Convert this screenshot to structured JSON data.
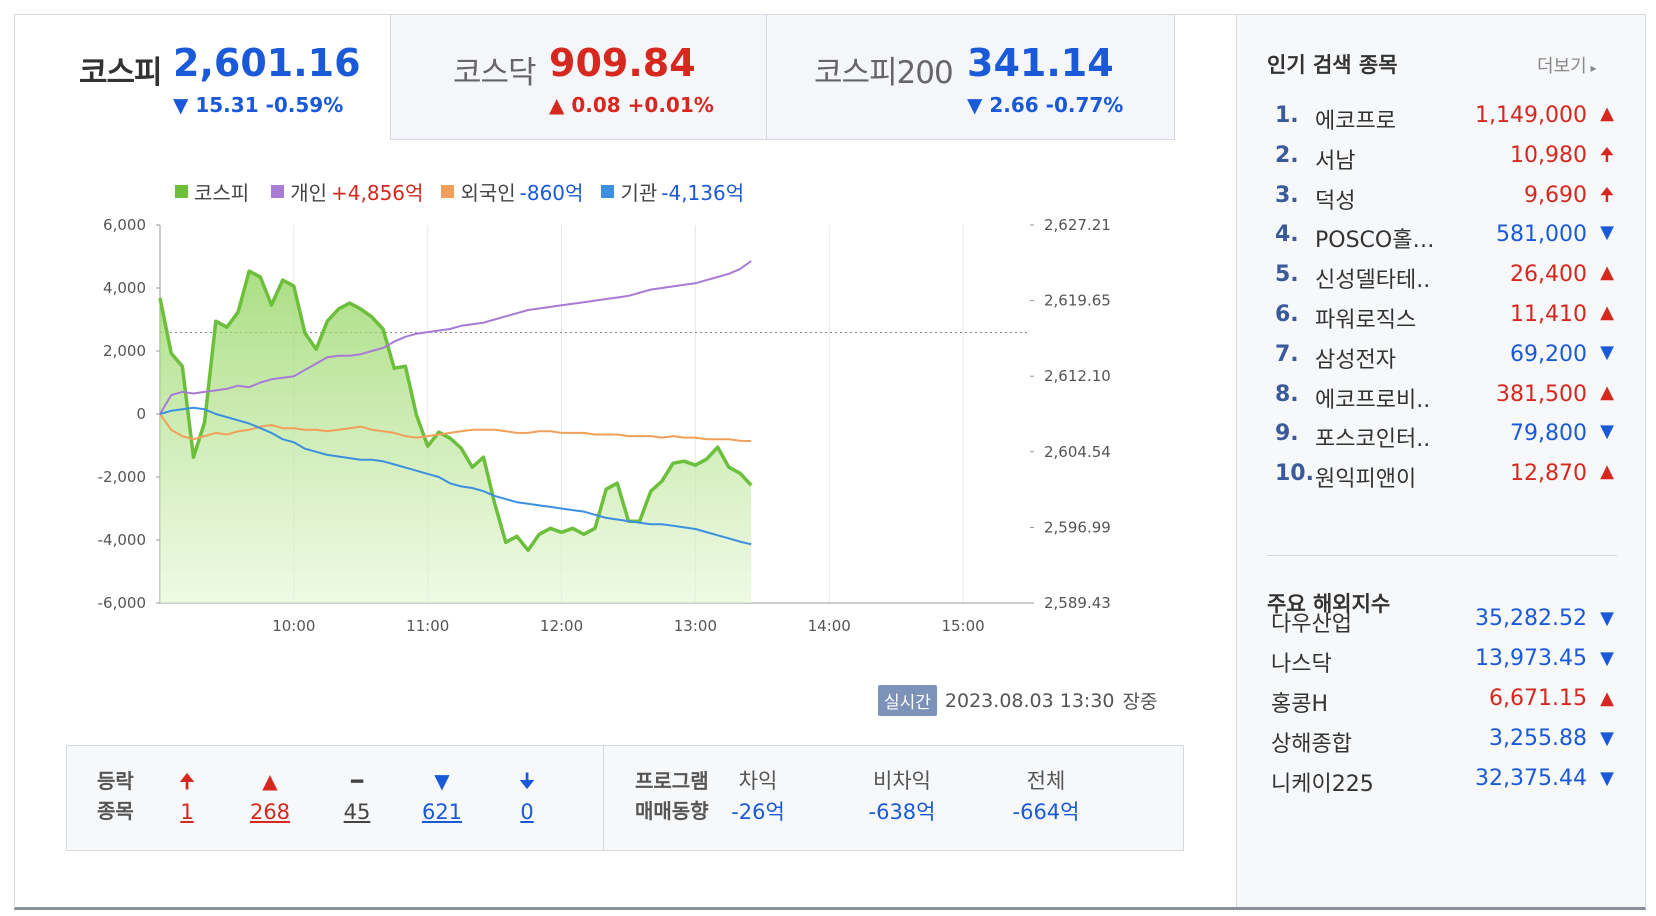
{
  "tabs": [
    {
      "name": "코스피",
      "value": "2,601.16",
      "change": "▼ 15.31 -0.59%",
      "dir": "down",
      "active": true
    },
    {
      "name": "코스닥",
      "value": "909.84",
      "change": "▲ 0.08 +0.01%",
      "dir": "up",
      "active": false
    },
    {
      "name": "코스피200",
      "value": "341.14",
      "change": "▼ 2.66 -0.77%",
      "dir": "down",
      "active": false
    }
  ],
  "legend": [
    {
      "label": "코스피",
      "value": "",
      "color": "#6bbf3a"
    },
    {
      "label": "개인",
      "value": "+4,856억",
      "color": "#a77bd6",
      "value_color": "#d6281f"
    },
    {
      "label": "외국인",
      "value": "-860억",
      "color": "#f0a05a",
      "value_color": "#1a5ad8"
    },
    {
      "label": "기관",
      "value": "-4,136억",
      "color": "#3d8fe0",
      "value_color": "#1a5ad8"
    }
  ],
  "chart_data": {
    "type": "line",
    "x_ticks": [
      "10:00",
      "11:00",
      "12:00",
      "13:00",
      "14:00",
      "15:00"
    ],
    "x_range": [
      "09:00",
      "15:30"
    ],
    "y_left_ticks": [
      "6,000",
      "4,000",
      "2,000",
      "0",
      "-2,000",
      "-4,000",
      "-6,000"
    ],
    "y_left_range": [
      -6000,
      6000
    ],
    "y_right_ticks": [
      "2,627.21",
      "2,619.65",
      "2,612.10",
      "2,604.54",
      "2,596.99",
      "2,589.43"
    ],
    "y_right_range": [
      2589.43,
      2627.21
    ],
    "reference_line": 2616.47,
    "series": [
      {
        "name": "코스피",
        "axis": "right",
        "color": "#6bbf3a",
        "fill": true,
        "points": [
          [
            "09:00",
            2619.9
          ],
          [
            "09:05",
            2614.4
          ],
          [
            "09:10",
            2613.1
          ],
          [
            "09:15",
            2604.0
          ],
          [
            "09:20",
            2607.5
          ],
          [
            "09:25",
            2617.6
          ],
          [
            "09:30",
            2617.0
          ],
          [
            "09:35",
            2618.5
          ],
          [
            "09:40",
            2622.6
          ],
          [
            "09:45",
            2622.0
          ],
          [
            "09:50",
            2619.2
          ],
          [
            "09:55",
            2621.7
          ],
          [
            "10:00",
            2621.1
          ],
          [
            "10:05",
            2616.4
          ],
          [
            "10:10",
            2614.8
          ],
          [
            "10:15",
            2617.6
          ],
          [
            "10:20",
            2618.8
          ],
          [
            "10:25",
            2619.4
          ],
          [
            "10:30",
            2618.8
          ],
          [
            "10:35",
            2618.0
          ],
          [
            "10:40",
            2616.8
          ],
          [
            "10:45",
            2612.9
          ],
          [
            "10:50",
            2613.1
          ],
          [
            "10:55",
            2608.2
          ],
          [
            "11:00",
            2605.1
          ],
          [
            "11:05",
            2606.5
          ],
          [
            "11:10",
            2605.9
          ],
          [
            "11:15",
            2604.9
          ],
          [
            "11:20",
            2603.0
          ],
          [
            "11:25",
            2604.0
          ],
          [
            "11:30",
            2599.4
          ],
          [
            "11:35",
            2595.5
          ],
          [
            "11:40",
            2596.1
          ],
          [
            "11:45",
            2594.7
          ],
          [
            "11:50",
            2596.3
          ],
          [
            "11:55",
            2596.9
          ],
          [
            "12:00",
            2596.5
          ],
          [
            "12:05",
            2596.9
          ],
          [
            "12:10",
            2596.3
          ],
          [
            "12:15",
            2596.9
          ],
          [
            "12:20",
            2600.8
          ],
          [
            "12:25",
            2601.4
          ],
          [
            "12:30",
            2597.6
          ],
          [
            "12:35",
            2597.6
          ],
          [
            "12:40",
            2600.6
          ],
          [
            "12:45",
            2601.6
          ],
          [
            "12:50",
            2603.4
          ],
          [
            "12:55",
            2603.6
          ],
          [
            "13:00",
            2603.2
          ],
          [
            "13:05",
            2603.8
          ],
          [
            "13:10",
            2605.0
          ],
          [
            "13:15",
            2603.0
          ],
          [
            "13:20",
            2602.4
          ],
          [
            "13:25",
            2601.2
          ]
        ]
      },
      {
        "name": "개인",
        "axis": "left",
        "color": "#a77bd6",
        "fill": false,
        "points": [
          [
            "09:00",
            0
          ],
          [
            "09:05",
            600
          ],
          [
            "09:10",
            700
          ],
          [
            "09:15",
            650
          ],
          [
            "09:20",
            700
          ],
          [
            "09:25",
            750
          ],
          [
            "09:30",
            800
          ],
          [
            "09:35",
            900
          ],
          [
            "09:40",
            850
          ],
          [
            "09:45",
            1000
          ],
          [
            "09:50",
            1100
          ],
          [
            "09:55",
            1150
          ],
          [
            "10:00",
            1200
          ],
          [
            "10:05",
            1400
          ],
          [
            "10:10",
            1600
          ],
          [
            "10:15",
            1800
          ],
          [
            "10:20",
            1850
          ],
          [
            "10:25",
            1850
          ],
          [
            "10:30",
            1900
          ],
          [
            "10:35",
            2000
          ],
          [
            "10:40",
            2100
          ],
          [
            "10:45",
            2300
          ],
          [
            "10:50",
            2450
          ],
          [
            "10:55",
            2550
          ],
          [
            "11:00",
            2600
          ],
          [
            "11:05",
            2650
          ],
          [
            "11:10",
            2700
          ],
          [
            "11:15",
            2800
          ],
          [
            "11:20",
            2850
          ],
          [
            "11:25",
            2900
          ],
          [
            "11:30",
            3000
          ],
          [
            "11:35",
            3100
          ],
          [
            "11:40",
            3200
          ],
          [
            "11:45",
            3300
          ],
          [
            "11:50",
            3350
          ],
          [
            "11:55",
            3400
          ],
          [
            "12:00",
            3450
          ],
          [
            "12:05",
            3500
          ],
          [
            "12:10",
            3550
          ],
          [
            "12:15",
            3600
          ],
          [
            "12:20",
            3650
          ],
          [
            "12:25",
            3700
          ],
          [
            "12:30",
            3750
          ],
          [
            "12:35",
            3850
          ],
          [
            "12:40",
            3950
          ],
          [
            "12:45",
            4000
          ],
          [
            "12:50",
            4050
          ],
          [
            "12:55",
            4100
          ],
          [
            "13:00",
            4150
          ],
          [
            "13:05",
            4250
          ],
          [
            "13:10",
            4350
          ],
          [
            "13:15",
            4450
          ],
          [
            "13:20",
            4600
          ],
          [
            "13:25",
            4856
          ]
        ]
      },
      {
        "name": "외국인",
        "axis": "left",
        "color": "#f0a05a",
        "fill": false,
        "points": [
          [
            "09:00",
            0
          ],
          [
            "09:05",
            -500
          ],
          [
            "09:10",
            -700
          ],
          [
            "09:15",
            -800
          ],
          [
            "09:20",
            -700
          ],
          [
            "09:25",
            -600
          ],
          [
            "09:30",
            -650
          ],
          [
            "09:35",
            -550
          ],
          [
            "09:40",
            -500
          ],
          [
            "09:45",
            -400
          ],
          [
            "09:50",
            -350
          ],
          [
            "09:55",
            -450
          ],
          [
            "10:00",
            -450
          ],
          [
            "10:05",
            -500
          ],
          [
            "10:10",
            -500
          ],
          [
            "10:15",
            -550
          ],
          [
            "10:20",
            -500
          ],
          [
            "10:25",
            -450
          ],
          [
            "10:30",
            -400
          ],
          [
            "10:35",
            -500
          ],
          [
            "10:40",
            -550
          ],
          [
            "10:45",
            -600
          ],
          [
            "10:50",
            -700
          ],
          [
            "10:55",
            -750
          ],
          [
            "11:00",
            -700
          ],
          [
            "11:05",
            -650
          ],
          [
            "11:10",
            -600
          ],
          [
            "11:15",
            -550
          ],
          [
            "11:20",
            -500
          ],
          [
            "11:25",
            -500
          ],
          [
            "11:30",
            -500
          ],
          [
            "11:35",
            -550
          ],
          [
            "11:40",
            -600
          ],
          [
            "11:45",
            -600
          ],
          [
            "11:50",
            -550
          ],
          [
            "11:55",
            -550
          ],
          [
            "12:00",
            -600
          ],
          [
            "12:05",
            -600
          ],
          [
            "12:10",
            -600
          ],
          [
            "12:15",
            -650
          ],
          [
            "12:20",
            -650
          ],
          [
            "12:25",
            -650
          ],
          [
            "12:30",
            -700
          ],
          [
            "12:35",
            -700
          ],
          [
            "12:40",
            -700
          ],
          [
            "12:45",
            -750
          ],
          [
            "12:50",
            -700
          ],
          [
            "12:55",
            -750
          ],
          [
            "13:00",
            -750
          ],
          [
            "13:05",
            -800
          ],
          [
            "13:10",
            -800
          ],
          [
            "13:15",
            -800
          ],
          [
            "13:20",
            -850
          ],
          [
            "13:25",
            -860
          ]
        ]
      },
      {
        "name": "기관",
        "axis": "left",
        "color": "#3d8fe0",
        "fill": false,
        "points": [
          [
            "09:00",
            0
          ],
          [
            "09:05",
            100
          ],
          [
            "09:10",
            150
          ],
          [
            "09:15",
            200
          ],
          [
            "09:20",
            150
          ],
          [
            "09:25",
            0
          ],
          [
            "09:30",
            -100
          ],
          [
            "09:35",
            -200
          ],
          [
            "09:40",
            -300
          ],
          [
            "09:45",
            -450
          ],
          [
            "09:50",
            -600
          ],
          [
            "09:55",
            -800
          ],
          [
            "10:00",
            -900
          ],
          [
            "10:05",
            -1100
          ],
          [
            "10:10",
            -1200
          ],
          [
            "10:15",
            -1300
          ],
          [
            "10:20",
            -1350
          ],
          [
            "10:25",
            -1400
          ],
          [
            "10:30",
            -1450
          ],
          [
            "10:35",
            -1450
          ],
          [
            "10:40",
            -1500
          ],
          [
            "10:45",
            -1600
          ],
          [
            "10:50",
            -1700
          ],
          [
            "10:55",
            -1800
          ],
          [
            "11:00",
            -1900
          ],
          [
            "11:05",
            -2000
          ],
          [
            "11:10",
            -2200
          ],
          [
            "11:15",
            -2300
          ],
          [
            "11:20",
            -2350
          ],
          [
            "11:25",
            -2450
          ],
          [
            "11:30",
            -2600
          ],
          [
            "11:35",
            -2700
          ],
          [
            "11:40",
            -2800
          ],
          [
            "11:45",
            -2850
          ],
          [
            "11:50",
            -2900
          ],
          [
            "11:55",
            -2950
          ],
          [
            "12:00",
            -3000
          ],
          [
            "12:05",
            -3050
          ],
          [
            "12:10",
            -3100
          ],
          [
            "12:15",
            -3200
          ],
          [
            "12:20",
            -3300
          ],
          [
            "12:25",
            -3350
          ],
          [
            "12:30",
            -3400
          ],
          [
            "12:35",
            -3450
          ],
          [
            "12:40",
            -3500
          ],
          [
            "12:45",
            -3500
          ],
          [
            "12:50",
            -3550
          ],
          [
            "12:55",
            -3600
          ],
          [
            "13:00",
            -3650
          ],
          [
            "13:05",
            -3750
          ],
          [
            "13:10",
            -3850
          ],
          [
            "13:15",
            -3950
          ],
          [
            "13:20",
            -4050
          ],
          [
            "13:25",
            -4136
          ]
        ]
      }
    ]
  },
  "realtime": {
    "badge": "실시간",
    "datetime": "2023.08.03 13:30",
    "status": "장중"
  },
  "advance_decline": {
    "header_line1": "등락",
    "header_line2": "종목",
    "items": [
      {
        "icon": "🠉",
        "count": "1",
        "color": "#d6281f",
        "name": "upper-limit"
      },
      {
        "icon": "▲",
        "count": "268",
        "color": "#d6281f",
        "name": "rise"
      },
      {
        "icon": "━",
        "count": "45",
        "color": "#444444",
        "name": "flat"
      },
      {
        "icon": "▼",
        "count": "621",
        "color": "#1a5ad8",
        "name": "fall"
      },
      {
        "icon": "🠋",
        "count": "0",
        "color": "#1a5ad8",
        "name": "lower-limit"
      }
    ]
  },
  "program": {
    "header_line1": "프로그램",
    "header_line2": "매매동향",
    "items": [
      {
        "label": "차익",
        "value": "-26억"
      },
      {
        "label": "비차익",
        "value": "-638억"
      },
      {
        "label": "전체",
        "value": "-664억"
      }
    ]
  },
  "popular": {
    "title": "인기 검색 종목",
    "more": "더보기",
    "items": [
      {
        "rank": "1.",
        "name": "에코프로",
        "price": "1,149,000",
        "dir": "up"
      },
      {
        "rank": "2.",
        "name": "서남",
        "price": "10,980",
        "dir": "limit-up"
      },
      {
        "rank": "3.",
        "name": "덕성",
        "price": "9,690",
        "dir": "limit-up"
      },
      {
        "rank": "4.",
        "name": "POSCO홀…",
        "price": "581,000",
        "dir": "down"
      },
      {
        "rank": "5.",
        "name": "신성델타테..",
        "price": "26,400",
        "dir": "up"
      },
      {
        "rank": "6.",
        "name": "파워로직스",
        "price": "11,410",
        "dir": "up"
      },
      {
        "rank": "7.",
        "name": "삼성전자",
        "price": "69,200",
        "dir": "down"
      },
      {
        "rank": "8.",
        "name": "에코프로비..",
        "price": "381,500",
        "dir": "up"
      },
      {
        "rank": "9.",
        "name": "포스코인터..",
        "price": "79,800",
        "dir": "down"
      },
      {
        "rank": "10.",
        "name": "원익피앤이",
        "price": "12,870",
        "dir": "up"
      }
    ]
  },
  "overseas": {
    "title": "주요 해외지수",
    "items": [
      {
        "name": "다우산업",
        "value": "35,282.52",
        "dir": "down"
      },
      {
        "name": "나스닥",
        "value": "13,973.45",
        "dir": "down"
      },
      {
        "name": "홍콩H",
        "value": "6,671.15",
        "dir": "up"
      },
      {
        "name": "상해종합",
        "value": "3,255.88",
        "dir": "down"
      },
      {
        "name": "니케이225",
        "value": "32,375.44",
        "dir": "down"
      }
    ]
  },
  "colors": {
    "up": "#d6281f",
    "down": "#1a5ad8"
  }
}
